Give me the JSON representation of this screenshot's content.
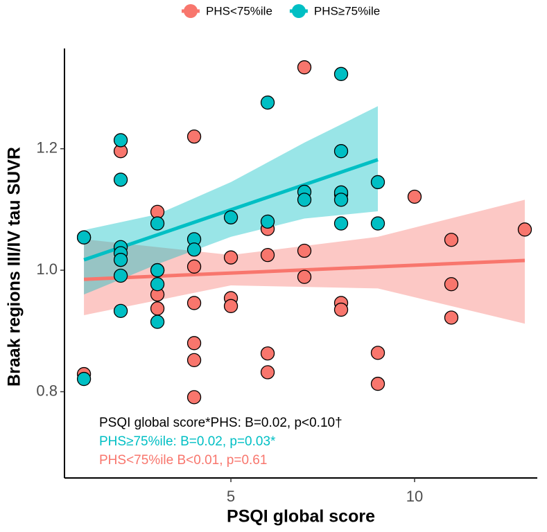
{
  "chart_data": {
    "type": "scatter",
    "x_label": "PSQI global score",
    "y_label": "Braak regions III/IV tau SUVR",
    "xlim": [
      0.47,
      13.34
    ],
    "ylim": [
      0.658,
      1.365
    ],
    "xticks": [
      5,
      10
    ],
    "yticks": [
      0.8,
      {
        "value": 1,
        "label": "1.0"
      },
      1.2
    ],
    "grid": false,
    "legend": "top",
    "series": [
      {
        "name": "PHS<75%ile",
        "color": "#f8766d",
        "x": [
          1,
          1,
          2,
          3,
          3,
          3,
          3,
          4,
          4,
          4,
          4,
          4,
          4,
          5,
          5,
          5,
          6,
          6,
          6,
          6,
          7,
          7,
          7,
          8,
          8,
          8,
          9,
          9,
          10,
          11,
          11,
          11,
          13
        ],
        "values": [
          0.829,
          1.054,
          1.196,
          1.096,
          1.0,
          0.96,
          0.937,
          1.22,
          1.006,
          0.946,
          0.88,
          0.852,
          0.791,
          1.021,
          0.954,
          0.941,
          1.068,
          1.025,
          0.863,
          0.832,
          1.334,
          1.032,
          0.989,
          0.946,
          0.935,
          1.125,
          0.864,
          0.813,
          1.121,
          1.05,
          0.977,
          0.922,
          1.067
        ],
        "fit": {
          "x": [
            1,
            13
          ],
          "values": [
            0.985,
            1.016
          ]
        },
        "band": {
          "x": [
            1,
            5,
            9,
            13
          ],
          "upper": [
            1.051,
            1.025,
            1.055,
            1.116
          ],
          "lower": [
            0.926,
            0.975,
            0.97,
            0.912
          ]
        }
      },
      {
        "name": "PHS≥75%ile",
        "color": "#00bfc4",
        "x": [
          1,
          1,
          2,
          2,
          2,
          2,
          2,
          2,
          2,
          3,
          3,
          3,
          3,
          4,
          4,
          5,
          6,
          6,
          7,
          7,
          8,
          8,
          8,
          8,
          8,
          9,
          9
        ],
        "values": [
          1.054,
          0.821,
          1.214,
          1.149,
          1.038,
          1.028,
          1.017,
          0.991,
          0.933,
          1.077,
          1.0,
          0.977,
          0.915,
          1.051,
          1.034,
          1.087,
          1.276,
          1.08,
          1.129,
          1.116,
          1.323,
          1.196,
          1.128,
          1.116,
          1.077,
          1.145,
          1.077
        ],
        "fit": {
          "x": [
            1,
            9
          ],
          "values": [
            1.017,
            1.182
          ]
        },
        "band": {
          "x": [
            1,
            3,
            5,
            7,
            9
          ],
          "upper": [
            1.066,
            1.092,
            1.145,
            1.21,
            1.27
          ],
          "lower": [
            0.96,
            1.01,
            1.055,
            1.085,
            1.097
          ]
        }
      }
    ],
    "annotations": [
      {
        "text": "PSQI global score*PHS: B=0.02, p<0.10†",
        "color": "#000000"
      },
      {
        "text": "PHS≥75%ile: B=0.02, p=0.03*",
        "color": "#00bfc4"
      },
      {
        "text": "PHS<75%ile B<0.01, p=0.61",
        "color": "#f8766d"
      }
    ]
  }
}
